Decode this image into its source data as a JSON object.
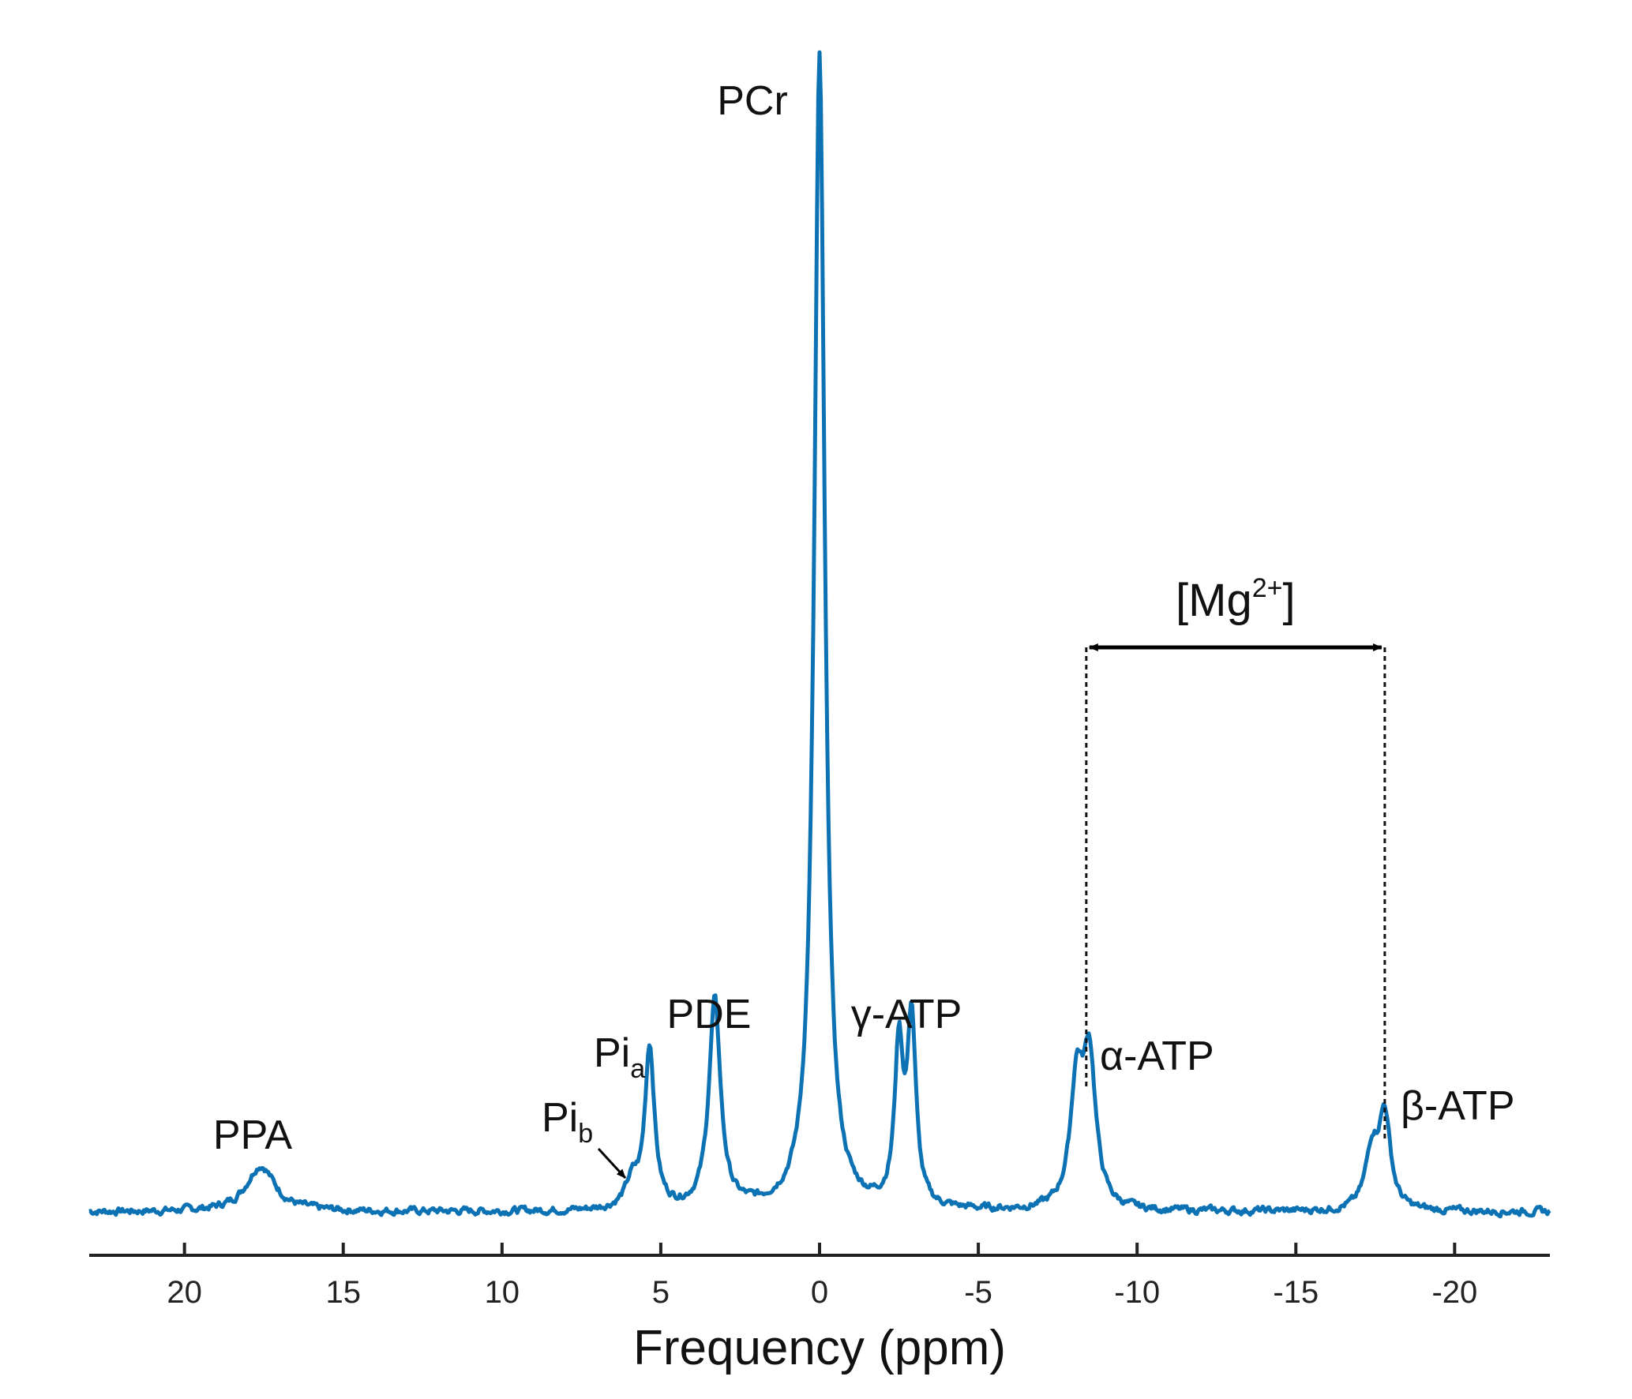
{
  "chart_data": {
    "type": "line",
    "xlabel": "Frequency (ppm)",
    "ylabel": "",
    "xlim": [
      23,
      -23
    ],
    "x_reversed": true,
    "xticks": [
      20,
      15,
      10,
      5,
      0,
      -5,
      -10,
      -15,
      -20
    ],
    "xtick_labels": [
      "20",
      "15",
      "10",
      "5",
      "0",
      "-5",
      "-10",
      "-15",
      "-20"
    ],
    "grid": false,
    "color": "#0c72b3",
    "baseline": 0.02,
    "peaks": [
      {
        "label": "PPA",
        "ppm": 17.6,
        "height": 0.04,
        "width": 0.55
      },
      {
        "label": "Pi_b",
        "ppm": 5.9,
        "height": 0.022,
        "width": 0.25
      },
      {
        "label": "Pi_a",
        "ppm": 5.35,
        "height": 0.14,
        "width": 0.18
      },
      {
        "label": "PDE",
        "ppm": 3.3,
        "height": 0.18,
        "width": 0.22
      },
      {
        "label": "PCr",
        "ppm": 0.0,
        "height": 1.0,
        "width": 0.2
      },
      {
        "label": "γ-ATP",
        "ppm": -2.5,
        "height": 0.135,
        "width": 0.16
      },
      {
        "label": "γ-ATP",
        "ppm": -2.9,
        "height": 0.16,
        "width": 0.16
      },
      {
        "label": "α-ATP",
        "ppm": -8.1,
        "height": 0.105,
        "width": 0.24
      },
      {
        "label": "α-ATP",
        "ppm": -8.5,
        "height": 0.125,
        "width": 0.24
      },
      {
        "label": "β-ATP",
        "ppm": -17.4,
        "height": 0.05,
        "width": 0.24
      },
      {
        "label": "β-ATP",
        "ppm": -17.8,
        "height": 0.08,
        "width": 0.22
      }
    ],
    "annotations": {
      "ppa": "PPA",
      "pi_b_base": "Pi",
      "pi_b_sub": "b",
      "pi_a_base": "Pi",
      "pi_a_sub": "a",
      "pde": "PDE",
      "pcr": "PCr",
      "gamma_atp": "γ-ATP",
      "alpha_atp": "α-ATP",
      "beta_atp": "β-ATP",
      "mg_open": "[Mg",
      "mg_sup": "2+",
      "mg_close": "]"
    },
    "mg_arrow": {
      "from_ppm": -8.4,
      "to_ppm": -17.8
    }
  }
}
